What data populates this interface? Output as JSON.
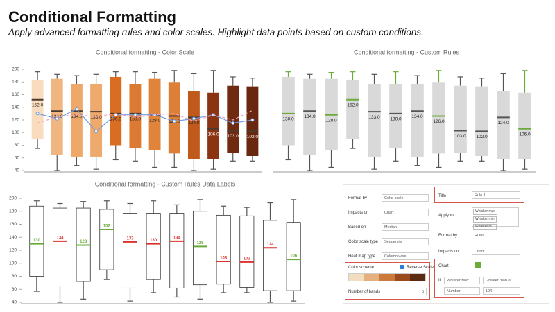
{
  "header": {
    "title": "Conditional Formatting",
    "subtitle": "Apply advanced formatting rules and color scales. Highlight data points based on custom conditions."
  },
  "chart_data": [
    {
      "type": "boxplot",
      "title": "Conditional formatting - Color Scale",
      "ylim": [
        40,
        200
      ],
      "yticks": [
        40,
        60,
        80,
        100,
        120,
        140,
        160,
        180,
        200
      ],
      "min": [
        75,
        40,
        48,
        42,
        57,
        55,
        45,
        45,
        40,
        42,
        55,
        55
      ],
      "q1": [
        90,
        65,
        62,
        62,
        80,
        75,
        72,
        67,
        58,
        58,
        68,
        63
      ],
      "median": [
        152,
        134,
        134,
        133,
        130,
        130,
        128,
        126,
        124,
        106,
        103,
        102
      ],
      "q3": [
        183,
        185,
        177,
        177,
        188,
        177,
        185,
        180,
        166,
        163,
        174,
        173
      ],
      "max": [
        196,
        192,
        190,
        192,
        196,
        196,
        195,
        198,
        193,
        198,
        188,
        186
      ],
      "value_labels": [
        "152.0",
        "134.0",
        "134.0",
        "133.0",
        "130.0",
        "130.0",
        "128.0",
        "126.0",
        "124.0",
        "106.0",
        "103.0",
        "102.0"
      ],
      "box_colors": [
        "#f8dcbd",
        "#f1b680",
        "#eea96a",
        "#eeaa6c",
        "#d96d22",
        "#dc7a33",
        "#e0843b",
        "#dd7f37",
        "#bf5a1c",
        "#8b3411",
        "#6f2a0f",
        "#6a2710"
      ],
      "median_color": "#4d3a2e",
      "lines": [
        {
          "color": "#6f9be0",
          "dashed": false,
          "values": [
            130,
            122,
            137,
            102,
            128,
            128,
            128,
            118,
            122,
            128,
            115,
            120
          ]
        },
        {
          "color": "#f2a2b8",
          "dashed": true,
          "values": [
            115,
            125,
            128,
            125,
            130,
            124,
            128,
            130,
            118,
            128,
            120,
            135
          ]
        }
      ]
    },
    {
      "type": "boxplot",
      "title": "Conditional formatting - Custom Rules",
      "ylim": [
        40,
        200
      ],
      "min": [
        57,
        40,
        45,
        75,
        42,
        55,
        48,
        45,
        55,
        55,
        40,
        42
      ],
      "q1": [
        80,
        65,
        72,
        90,
        62,
        75,
        62,
        67,
        68,
        63,
        58,
        58
      ],
      "median": [
        130,
        134,
        128,
        152,
        133,
        130,
        134,
        126,
        103,
        102,
        124,
        106
      ],
      "q3": [
        188,
        185,
        185,
        183,
        177,
        177,
        177,
        180,
        174,
        173,
        166,
        163
      ],
      "max": [
        196,
        192,
        195,
        196,
        192,
        196,
        190,
        198,
        188,
        186,
        193,
        198
      ],
      "value_labels": [
        "130.0",
        "134.0",
        "128.0",
        "152.0",
        "133.0",
        "130.0",
        "134.0",
        "126.0",
        "103.0",
        "102.0",
        "124.0",
        "106.0"
      ],
      "box_color": "#d9d9d9",
      "median_colors": [
        "#6aab3a",
        "#555555",
        "#6aab3a",
        "#6aab3a",
        "#555555",
        "#555555",
        "#555555",
        "#6aab3a",
        "#555555",
        "#555555",
        "#555555",
        "#6aab3a"
      ],
      "whisker_colors": [
        "#6aab3a",
        "#555555",
        "#6aab3a",
        "#6aab3a",
        "#555555",
        "#6aab3a",
        "#555555",
        "#6aab3a",
        "#555555",
        "#555555",
        "#555555",
        "#6aab3a"
      ]
    },
    {
      "type": "boxplot",
      "title": "Conditional formatting - Custom Rules Data Labels",
      "ylim": [
        40,
        200
      ],
      "yticks": [
        40,
        60,
        80,
        100,
        120,
        140,
        160,
        180,
        200
      ],
      "min": [
        57,
        40,
        45,
        75,
        42,
        55,
        48,
        45,
        55,
        55,
        40,
        42
      ],
      "q1": [
        80,
        65,
        72,
        90,
        62,
        75,
        62,
        67,
        68,
        63,
        58,
        58
      ],
      "median": [
        130,
        134,
        128,
        152,
        133,
        130,
        134,
        126,
        103,
        102,
        124,
        106
      ],
      "q3": [
        188,
        185,
        185,
        183,
        177,
        177,
        177,
        180,
        174,
        173,
        166,
        163
      ],
      "max": [
        196,
        192,
        195,
        196,
        192,
        196,
        190,
        198,
        188,
        186,
        193,
        198
      ],
      "box_color": "#ffffff",
      "median_colors": [
        "#6aab3a",
        "#d9342b",
        "#6aab3a",
        "#6aab3a",
        "#d9342b",
        "#d9342b",
        "#d9342b",
        "#6aab3a",
        "#d9342b",
        "#d9342b",
        "#d9342b",
        "#6aab3a"
      ]
    }
  ],
  "panel": {
    "left": [
      {
        "label": "Format by",
        "value": "Color scale"
      },
      {
        "label": "Impacts on",
        "value": "Chart"
      },
      {
        "label": "Based on",
        "value": "Median"
      },
      {
        "label": "Color scale type",
        "value": "Sequential"
      },
      {
        "label": "Heat map type",
        "value": "Column wise"
      }
    ],
    "color_scheme": "Color scheme",
    "reverse": "Reverse Scale",
    "bands_label": "Number of bands",
    "bands_value": "5",
    "title_label": "Title",
    "title_value": "Rule 1",
    "apply_label": "Apply to",
    "apply_tags": [
      "Whisker max",
      "Whisker min",
      "Whisker m..."
    ],
    "format_label": "Format by",
    "format_value": "Rules",
    "impacts_label": "Impacts on",
    "impacts_value": "Chart",
    "chart_label": "Chart",
    "if_label": "If",
    "if_field": "Whisker Max",
    "if_op": "Greater than or...",
    "num_label": "Number",
    "num_value": "194"
  }
}
